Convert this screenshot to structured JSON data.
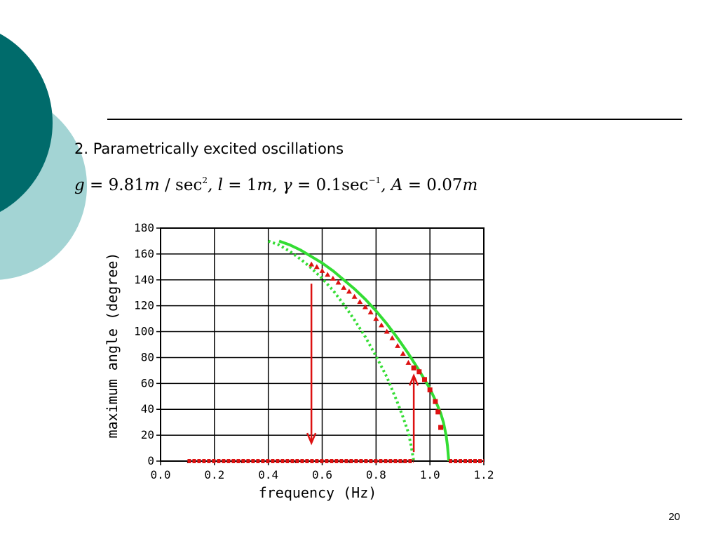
{
  "slide": {
    "subtitle": "2. Parametrically excited oscillations",
    "page_number": "20",
    "formula": {
      "g_label": "g",
      "g_value": " = 9.81",
      "g_unit": "m",
      "g_unit_tail": " / sec",
      "g_exp": "2",
      "l_label": ", l",
      "l_value": " = 1",
      "l_unit": "m",
      "gamma_label": ", γ",
      "gamma_value": " = 0.1sec",
      "gamma_exp": "−1",
      "a_label": ", A",
      "a_value": " = 0.07",
      "a_unit": "m"
    },
    "colors": {
      "decor_dark": "#006b6b",
      "decor_light": "#a3d4d4",
      "green": "#33dd33",
      "red": "#dd1111"
    }
  },
  "chart_data": {
    "type": "scatter",
    "xlabel": "frequency (Hz)",
    "ylabel": "maximum angle (degree)",
    "xlim": [
      0.0,
      1.2
    ],
    "ylim": [
      0,
      180
    ],
    "xticks": [
      0.0,
      0.2,
      0.4,
      0.6,
      0.8,
      1.0,
      1.2
    ],
    "xtick_labels": [
      "0.0",
      "0.2",
      "0.4",
      "0.6",
      "0.8",
      "1.0",
      "1.2"
    ],
    "yticks": [
      0,
      20,
      40,
      60,
      80,
      100,
      120,
      140,
      160,
      180
    ],
    "ytick_labels": [
      "0",
      "20",
      "40",
      "60",
      "80",
      "100",
      "120",
      "140",
      "160",
      "180"
    ],
    "grid": true,
    "series": [
      {
        "style": "solid-green",
        "x": [
          0.44,
          0.48,
          0.52,
          0.56,
          0.6,
          0.64,
          0.68,
          0.72,
          0.76,
          0.8,
          0.84,
          0.88,
          0.92,
          0.96,
          1.0,
          1.02,
          1.04,
          1.05,
          1.06,
          1.065,
          1.07
        ],
        "y": [
          170,
          167,
          163,
          158,
          153,
          147,
          140,
          133,
          125,
          116,
          106,
          95,
          83,
          70,
          56,
          47,
          37,
          30,
          20,
          12,
          0
        ]
      },
      {
        "style": "dotted-green",
        "x": [
          0.4,
          0.44,
          0.48,
          0.52,
          0.56,
          0.6,
          0.64,
          0.68,
          0.72,
          0.76,
          0.8,
          0.84,
          0.88,
          0.9,
          0.92,
          0.93,
          0.94
        ],
        "y": [
          170,
          167,
          162,
          156,
          149,
          141,
          132,
          121,
          109,
          96,
          81,
          65,
          45,
          34,
          22,
          12,
          0
        ]
      },
      {
        "style": "red-triangles",
        "x": [
          0.56,
          0.58,
          0.6,
          0.62,
          0.64,
          0.66,
          0.68,
          0.7,
          0.72,
          0.74,
          0.76,
          0.78,
          0.8,
          0.82,
          0.84,
          0.86,
          0.88,
          0.9,
          0.92
        ],
        "y": [
          152,
          150,
          147,
          144,
          141,
          138,
          134,
          131,
          127,
          123,
          119,
          115,
          110,
          105,
          100,
          95,
          89,
          83,
          76
        ]
      },
      {
        "style": "red-squares",
        "x": [
          0.94,
          0.96,
          0.98,
          1.0,
          1.02,
          1.03,
          1.04
        ],
        "y": [
          72,
          69,
          63,
          55,
          46,
          38,
          26
        ]
      },
      {
        "style": "red-baseline",
        "x_start": 0.1,
        "x_end": 0.94,
        "x_restart": 1.07,
        "x_stop": 1.2,
        "y": 0
      }
    ],
    "annotations": [
      {
        "type": "arrow-down",
        "x": 0.56,
        "y_from": 137,
        "y_to": 14
      },
      {
        "type": "arrow-up",
        "x": 0.94,
        "y_from": 7,
        "y_to": 66
      }
    ]
  }
}
